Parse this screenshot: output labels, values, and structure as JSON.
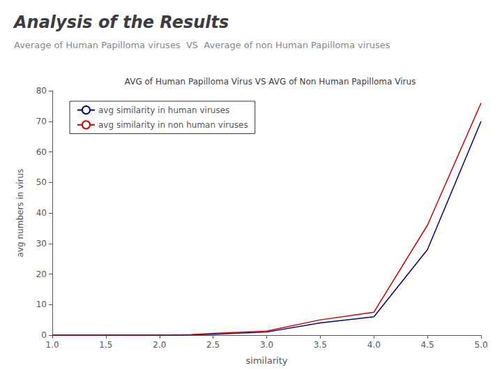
{
  "chart_data": {
    "type": "line",
    "title": "Analysis of the Results",
    "subtitle": "Average of Human Papilloma viruses  VS  Average of non Human Papilloma viruses",
    "chart_title": "AVG of Human Papilloma Virus VS AVG of Non Human Papilloma Virus",
    "xlabel": "similarity",
    "ylabel": "avg numbers in virus",
    "x": [
      1,
      1.5,
      2,
      2.3,
      2.5,
      3.0,
      3.5,
      4.0,
      4.5,
      5.0
    ],
    "series": [
      {
        "name": "avg similarity in human viruses",
        "color": "#000080",
        "values": [
          0,
          0,
          0,
          0.1,
          0.3,
          1.0,
          4.0,
          6.0,
          28,
          70
        ]
      },
      {
        "name": "avg similarity in non human viruses",
        "color": "#cc0000",
        "values": [
          0,
          0,
          0,
          0.15,
          0.6,
          1.3,
          5.0,
          7.5,
          36,
          76
        ]
      }
    ],
    "xlim": [
      1,
      5
    ],
    "ylim": [
      0,
      80
    ],
    "xticks": [
      {
        "value": 1,
        "label": "1.0"
      },
      1.5,
      {
        "value": 2,
        "label": "2.0"
      },
      2.5,
      {
        "value": 3,
        "label": "3.0"
      },
      3.5,
      {
        "value": 4,
        "label": "4.0"
      },
      4.5,
      {
        "value": 5,
        "label": "5.0"
      }
    ],
    "yticks": [
      0,
      10,
      20,
      30,
      40,
      50,
      60,
      70,
      80
    ],
    "grid": false,
    "legend": "upper left"
  }
}
